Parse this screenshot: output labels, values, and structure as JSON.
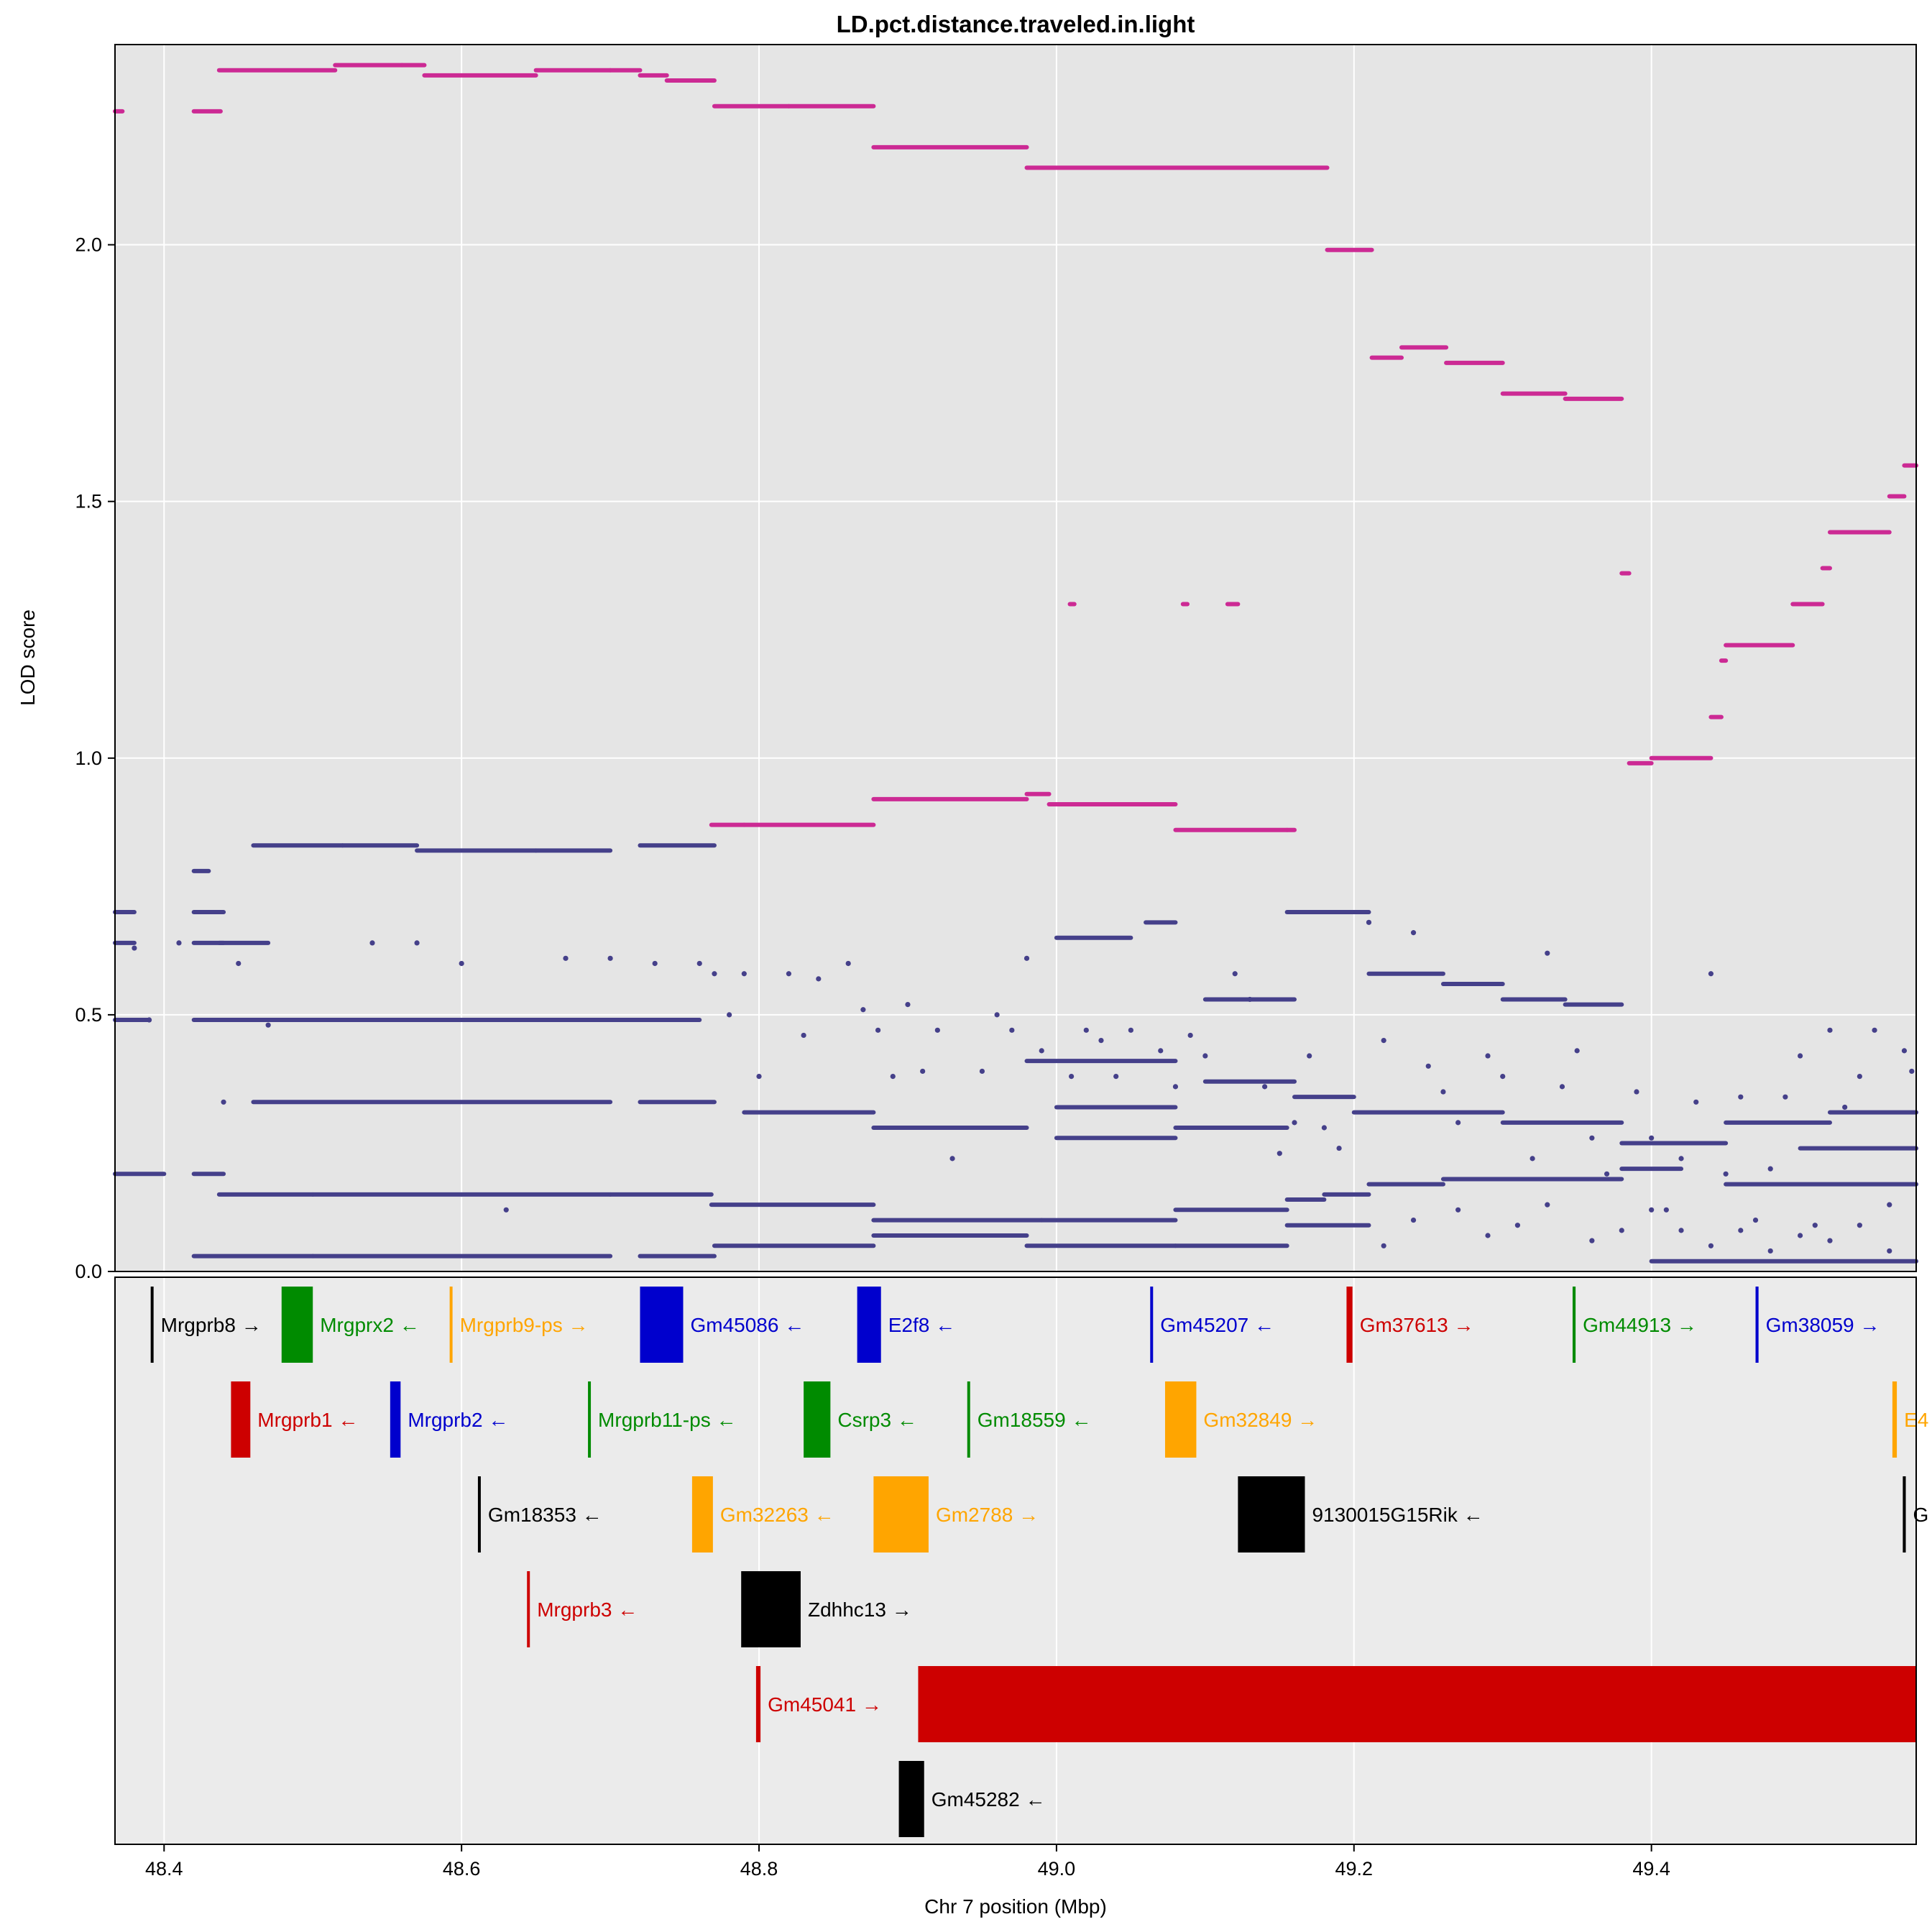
{
  "chart_data": {
    "type": "scatter",
    "title": "LD.pct.distance.traveled.in.light",
    "xlabel": "Chr 7 position (Mbp)",
    "ylabel": "LOD score",
    "xlim": [
      48.367,
      49.578
    ],
    "ylim": [
      0,
      2.39
    ],
    "x_ticks": [
      "48.4",
      "48.6",
      "48.8",
      "49.0",
      "49.2",
      "49.4"
    ],
    "x_tick_values": [
      48.4,
      48.6,
      48.8,
      49.0,
      49.2,
      49.4
    ],
    "y_ticks": [
      "0.0",
      "0.5",
      "1.0",
      "1.5",
      "2.0"
    ],
    "y_tick_values": [
      0,
      0.5,
      1.0,
      1.5,
      2.0
    ],
    "grid": true,
    "colors": {
      "panel": "#e5e5e5",
      "gene_panel": "#ebebeb",
      "grid": "#ffffff",
      "top_series": "#cc2a94",
      "other_snps": "#45408a"
    },
    "series": [
      {
        "role": "top",
        "segments": [
          [
            48.366,
            48.372,
            2.26
          ],
          [
            48.42,
            48.438,
            2.26
          ],
          [
            48.437,
            48.515,
            2.34
          ],
          [
            48.515,
            48.56,
            2.35
          ],
          [
            48.56,
            48.575,
            2.35
          ],
          [
            48.575,
            48.65,
            2.33
          ],
          [
            48.65,
            48.7,
            2.34
          ],
          [
            48.7,
            48.72,
            2.34
          ],
          [
            48.72,
            48.738,
            2.33
          ],
          [
            48.738,
            48.77,
            2.32
          ],
          [
            48.77,
            48.82,
            2.27
          ],
          [
            48.82,
            48.877,
            2.27
          ],
          [
            48.877,
            48.98,
            2.19
          ],
          [
            48.98,
            49.182,
            2.15
          ],
          [
            49.182,
            49.212,
            1.99
          ],
          [
            49.212,
            49.232,
            1.78
          ],
          [
            49.232,
            49.262,
            1.8
          ],
          [
            49.262,
            49.3,
            1.77
          ],
          [
            49.3,
            49.342,
            1.71
          ],
          [
            49.342,
            49.38,
            1.7
          ],
          [
            49.38,
            49.385,
            1.36
          ],
          [
            49.385,
            49.4,
            0.99
          ],
          [
            49.4,
            49.44,
            1.0
          ],
          [
            49.44,
            49.447,
            1.08
          ],
          [
            49.447,
            49.45,
            1.19
          ],
          [
            49.45,
            49.495,
            1.22
          ],
          [
            49.495,
            49.515,
            1.3
          ],
          [
            49.515,
            49.52,
            1.37
          ],
          [
            49.52,
            49.56,
            1.44
          ],
          [
            49.56,
            49.57,
            1.51
          ],
          [
            49.57,
            49.578,
            1.57
          ],
          [
            48.768,
            48.79,
            0.87
          ],
          [
            48.79,
            48.877,
            0.87
          ],
          [
            48.877,
            48.98,
            0.92
          ],
          [
            48.98,
            48.995,
            0.93
          ],
          [
            48.995,
            49.08,
            0.91
          ],
          [
            49.08,
            49.155,
            0.86
          ],
          [
            49.155,
            49.16,
            0.86
          ],
          [
            49.009,
            49.012,
            1.3
          ],
          [
            49.085,
            49.088,
            1.3
          ],
          [
            49.115,
            49.122,
            1.3
          ]
        ]
      },
      {
        "role": "other",
        "segments": [
          [
            48.366,
            48.39,
            0.49
          ],
          [
            48.42,
            48.48,
            0.49
          ],
          [
            48.48,
            48.52,
            0.49
          ],
          [
            48.52,
            48.58,
            0.49
          ],
          [
            48.58,
            48.69,
            0.49
          ],
          [
            48.69,
            48.76,
            0.49
          ],
          [
            48.366,
            48.4,
            0.19
          ],
          [
            48.42,
            48.44,
            0.19
          ],
          [
            48.366,
            48.38,
            0.7
          ],
          [
            48.42,
            48.44,
            0.7
          ],
          [
            48.366,
            48.38,
            0.64
          ],
          [
            48.42,
            48.44,
            0.64
          ],
          [
            48.437,
            48.47,
            0.64
          ],
          [
            48.42,
            48.43,
            0.78
          ],
          [
            48.46,
            48.52,
            0.83
          ],
          [
            48.52,
            48.57,
            0.83
          ],
          [
            48.57,
            48.65,
            0.82
          ],
          [
            48.65,
            48.7,
            0.82
          ],
          [
            48.72,
            48.77,
            0.83
          ],
          [
            48.437,
            48.5,
            0.15
          ],
          [
            48.5,
            48.6,
            0.15
          ],
          [
            48.6,
            48.7,
            0.15
          ],
          [
            48.7,
            48.768,
            0.15
          ],
          [
            48.768,
            48.877,
            0.13
          ],
          [
            48.877,
            48.99,
            0.1
          ],
          [
            48.99,
            49.08,
            0.1
          ],
          [
            49.08,
            49.155,
            0.12
          ],
          [
            49.155,
            49.18,
            0.14
          ],
          [
            49.18,
            49.21,
            0.15
          ],
          [
            49.21,
            49.26,
            0.17
          ],
          [
            49.26,
            49.38,
            0.18
          ],
          [
            49.38,
            49.42,
            0.2
          ],
          [
            48.42,
            48.5,
            0.03
          ],
          [
            48.5,
            48.7,
            0.03
          ],
          [
            48.72,
            48.77,
            0.03
          ],
          [
            48.77,
            48.877,
            0.05
          ],
          [
            48.877,
            48.98,
            0.07
          ],
          [
            48.98,
            49.08,
            0.05
          ],
          [
            49.08,
            49.155,
            0.05
          ],
          [
            49.155,
            49.21,
            0.09
          ],
          [
            48.46,
            48.7,
            0.33
          ],
          [
            48.72,
            48.77,
            0.33
          ],
          [
            48.79,
            48.877,
            0.31
          ],
          [
            48.877,
            48.98,
            0.28
          ],
          [
            49.0,
            49.08,
            0.32
          ],
          [
            49.0,
            49.08,
            0.26
          ],
          [
            49.08,
            49.155,
            0.28
          ],
          [
            49.155,
            49.21,
            0.7
          ],
          [
            49.21,
            49.26,
            0.58
          ],
          [
            49.26,
            49.3,
            0.56
          ],
          [
            49.3,
            49.342,
            0.53
          ],
          [
            49.342,
            49.38,
            0.52
          ],
          [
            49.2,
            49.3,
            0.31
          ],
          [
            49.3,
            49.38,
            0.29
          ],
          [
            49.38,
            49.45,
            0.25
          ],
          [
            49.45,
            49.52,
            0.29
          ],
          [
            49.52,
            49.578,
            0.31
          ],
          [
            49.5,
            49.578,
            0.24
          ],
          [
            49.45,
            49.578,
            0.17
          ],
          [
            49.4,
            49.578,
            0.02
          ],
          [
            49.0,
            49.05,
            0.65
          ],
          [
            49.06,
            49.08,
            0.68
          ],
          [
            48.98,
            49.08,
            0.41
          ],
          [
            49.1,
            49.16,
            0.53
          ],
          [
            49.1,
            49.16,
            0.37
          ],
          [
            49.16,
            49.2,
            0.34
          ]
        ],
        "scatter": [
          [
            48.38,
            0.63
          ],
          [
            48.39,
            0.49
          ],
          [
            48.41,
            0.64
          ],
          [
            48.44,
            0.33
          ],
          [
            48.45,
            0.6
          ],
          [
            48.47,
            0.48
          ],
          [
            48.54,
            0.64
          ],
          [
            48.57,
            0.64
          ],
          [
            48.6,
            0.6
          ],
          [
            48.63,
            0.12
          ],
          [
            48.67,
            0.61
          ],
          [
            48.7,
            0.61
          ],
          [
            48.73,
            0.6
          ],
          [
            48.76,
            0.6
          ],
          [
            48.77,
            0.58
          ],
          [
            48.78,
            0.5
          ],
          [
            48.79,
            0.58
          ],
          [
            48.8,
            0.38
          ],
          [
            48.82,
            0.58
          ],
          [
            48.83,
            0.46
          ],
          [
            48.84,
            0.57
          ],
          [
            48.86,
            0.6
          ],
          [
            48.87,
            0.51
          ],
          [
            48.88,
            0.47
          ],
          [
            48.89,
            0.38
          ],
          [
            48.9,
            0.52
          ],
          [
            48.91,
            0.39
          ],
          [
            48.92,
            0.47
          ],
          [
            48.93,
            0.22
          ],
          [
            48.95,
            0.39
          ],
          [
            48.96,
            0.5
          ],
          [
            48.97,
            0.47
          ],
          [
            48.98,
            0.61
          ],
          [
            48.99,
            0.43
          ],
          [
            49.01,
            0.38
          ],
          [
            49.02,
            0.47
          ],
          [
            49.03,
            0.45
          ],
          [
            49.04,
            0.38
          ],
          [
            49.05,
            0.47
          ],
          [
            49.07,
            0.43
          ],
          [
            49.08,
            0.36
          ],
          [
            49.09,
            0.46
          ],
          [
            49.1,
            0.42
          ],
          [
            49.12,
            0.58
          ],
          [
            49.13,
            0.53
          ],
          [
            49.14,
            0.36
          ],
          [
            49.15,
            0.23
          ],
          [
            49.16,
            0.29
          ],
          [
            49.17,
            0.42
          ],
          [
            49.18,
            0.28
          ],
          [
            49.19,
            0.24
          ],
          [
            49.21,
            0.68
          ],
          [
            49.22,
            0.45
          ],
          [
            49.24,
            0.66
          ],
          [
            49.25,
            0.4
          ],
          [
            49.26,
            0.35
          ],
          [
            49.27,
            0.29
          ],
          [
            49.29,
            0.42
          ],
          [
            49.3,
            0.38
          ],
          [
            49.32,
            0.22
          ],
          [
            49.33,
            0.62
          ],
          [
            49.34,
            0.36
          ],
          [
            49.35,
            0.43
          ],
          [
            49.36,
            0.26
          ],
          [
            49.37,
            0.19
          ],
          [
            49.39,
            0.35
          ],
          [
            49.4,
            0.26
          ],
          [
            49.41,
            0.12
          ],
          [
            49.42,
            0.22
          ],
          [
            49.43,
            0.33
          ],
          [
            49.44,
            0.58
          ],
          [
            49.45,
            0.19
          ],
          [
            49.46,
            0.34
          ],
          [
            49.47,
            0.1
          ],
          [
            49.48,
            0.2
          ],
          [
            49.49,
            0.34
          ],
          [
            49.5,
            0.42
          ],
          [
            49.51,
            0.09
          ],
          [
            49.52,
            0.47
          ],
          [
            49.53,
            0.32
          ],
          [
            49.54,
            0.38
          ],
          [
            49.55,
            0.47
          ],
          [
            49.56,
            0.13
          ],
          [
            49.57,
            0.43
          ],
          [
            49.575,
            0.39
          ],
          [
            49.4,
            0.12
          ],
          [
            49.42,
            0.08
          ],
          [
            49.44,
            0.05
          ],
          [
            49.46,
            0.08
          ],
          [
            49.48,
            0.04
          ],
          [
            49.5,
            0.07
          ],
          [
            49.52,
            0.06
          ],
          [
            49.54,
            0.09
          ],
          [
            49.56,
            0.04
          ],
          [
            49.38,
            0.08
          ],
          [
            49.36,
            0.06
          ],
          [
            49.33,
            0.13
          ],
          [
            49.31,
            0.09
          ],
          [
            49.29,
            0.07
          ],
          [
            49.27,
            0.12
          ],
          [
            49.24,
            0.1
          ],
          [
            49.22,
            0.05
          ]
        ]
      }
    ],
    "genes": [
      {
        "name": "Mrgprb8",
        "arrow": "→",
        "start": 48.391,
        "end": 48.392,
        "row": 0,
        "color": "#000000"
      },
      {
        "name": "Mrgprx2",
        "arrow": "←",
        "start": 48.479,
        "end": 48.5,
        "row": 0,
        "color": "#008b00"
      },
      {
        "name": "Mrgprb9-ps",
        "arrow": "→",
        "start": 48.592,
        "end": 48.593,
        "row": 0,
        "color": "#ffa500"
      },
      {
        "name": "Gm45086",
        "arrow": "←",
        "start": 48.72,
        "end": 48.749,
        "row": 0,
        "color": "#0000cd"
      },
      {
        "name": "E2f8",
        "arrow": "←",
        "start": 48.866,
        "end": 48.882,
        "row": 0,
        "color": "#0000cd"
      },
      {
        "name": "Gm45207",
        "arrow": "←",
        "start": 49.063,
        "end": 49.064,
        "row": 0,
        "color": "#0000cd"
      },
      {
        "name": "Gm37613",
        "arrow": "→",
        "start": 49.195,
        "end": 49.199,
        "row": 0,
        "color": "#cd0000"
      },
      {
        "name": "Gm44913",
        "arrow": "→",
        "start": 49.347,
        "end": 49.349,
        "row": 0,
        "color": "#008b00"
      },
      {
        "name": "Gm38059",
        "arrow": "→",
        "start": 49.47,
        "end": 49.472,
        "row": 0,
        "color": "#0000cd"
      },
      {
        "name": "Mrgprb1",
        "arrow": "←",
        "start": 48.445,
        "end": 48.458,
        "row": 1,
        "color": "#cd0000"
      },
      {
        "name": "Mrgprb2",
        "arrow": "←",
        "start": 48.552,
        "end": 48.559,
        "row": 1,
        "color": "#0000cd"
      },
      {
        "name": "Mrgprb11-ps",
        "arrow": "←",
        "start": 48.685,
        "end": 48.686,
        "row": 1,
        "color": "#008b00"
      },
      {
        "name": "Csrp3",
        "arrow": "←",
        "start": 48.83,
        "end": 48.848,
        "row": 1,
        "color": "#008b00"
      },
      {
        "name": "Gm18559",
        "arrow": "←",
        "start": 48.94,
        "end": 48.941,
        "row": 1,
        "color": "#008b00"
      },
      {
        "name": "Gm32849",
        "arrow": "→",
        "start": 49.073,
        "end": 49.094,
        "row": 1,
        "color": "#ffa500"
      },
      {
        "name": "E4",
        "arrow": "",
        "start": 49.562,
        "end": 49.565,
        "row": 1,
        "color": "#ffa500"
      },
      {
        "name": "Gm18353",
        "arrow": "←",
        "start": 48.611,
        "end": 48.612,
        "row": 2,
        "color": "#000000"
      },
      {
        "name": "Gm32263",
        "arrow": "←",
        "start": 48.755,
        "end": 48.769,
        "row": 2,
        "color": "#ffa500"
      },
      {
        "name": "Gm2788",
        "arrow": "→",
        "start": 48.877,
        "end": 48.914,
        "row": 2,
        "color": "#ffa500"
      },
      {
        "name": "9130015G15Rik",
        "arrow": "←",
        "start": 49.122,
        "end": 49.167,
        "row": 2,
        "color": "#000000"
      },
      {
        "name": "G",
        "arrow": "",
        "start": 49.569,
        "end": 49.571,
        "row": 2,
        "color": "#000000"
      },
      {
        "name": "Mrgprb3",
        "arrow": "←",
        "start": 48.644,
        "end": 48.645,
        "row": 3,
        "color": "#cd0000"
      },
      {
        "name": "Zdhhc13",
        "arrow": "→",
        "start": 48.788,
        "end": 48.828,
        "row": 3,
        "color": "#000000"
      },
      {
        "name": "Gm45041",
        "arrow": "→",
        "start": 48.798,
        "end": 48.801,
        "row": 4,
        "color": "#cd0000"
      },
      {
        "name": "",
        "arrow": "",
        "start": 48.907,
        "end": 49.578,
        "row": 4,
        "color": "#cd0000"
      },
      {
        "name": "Gm45282",
        "arrow": "←",
        "start": 48.894,
        "end": 48.911,
        "row": 5,
        "color": "#000000"
      }
    ]
  }
}
